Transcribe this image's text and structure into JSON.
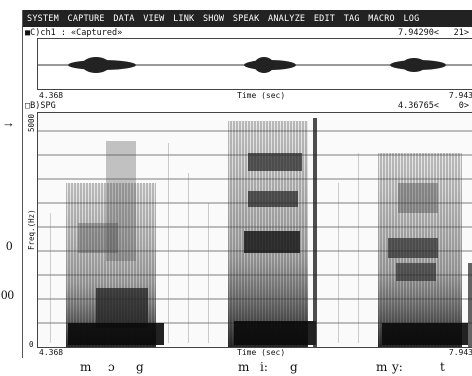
{
  "left_fragments": [
    "→",
    "0",
    "00"
  ],
  "menu": [
    "SYSTEM",
    "CAPTURE",
    "DATA",
    "VIEW",
    "LINK",
    "SHOW",
    "SPEAK",
    "ANALYZE",
    "EDIT",
    "TAG",
    "MACRO",
    "LOG"
  ],
  "wave_pane": {
    "label": "■C)ch1 : «Captured»",
    "cursor_value": "7.94290<",
    "count": "21>",
    "x_start": "4.368",
    "x_label": "Time (sec)",
    "x_end": "7.943"
  },
  "spg_pane": {
    "label": "□B)SPG",
    "cursor_value": "4.36765<",
    "count": "0>",
    "y_max": "5000",
    "y_label": "Freq.(Hz)",
    "y_min": "0",
    "x_start": "4.368",
    "x_label": "Time (sec)",
    "x_end": "7.943"
  },
  "phones": [
    "m",
    "ɔ",
    "g",
    "m",
    "i:",
    "g",
    "m",
    "y:",
    "t"
  ]
}
